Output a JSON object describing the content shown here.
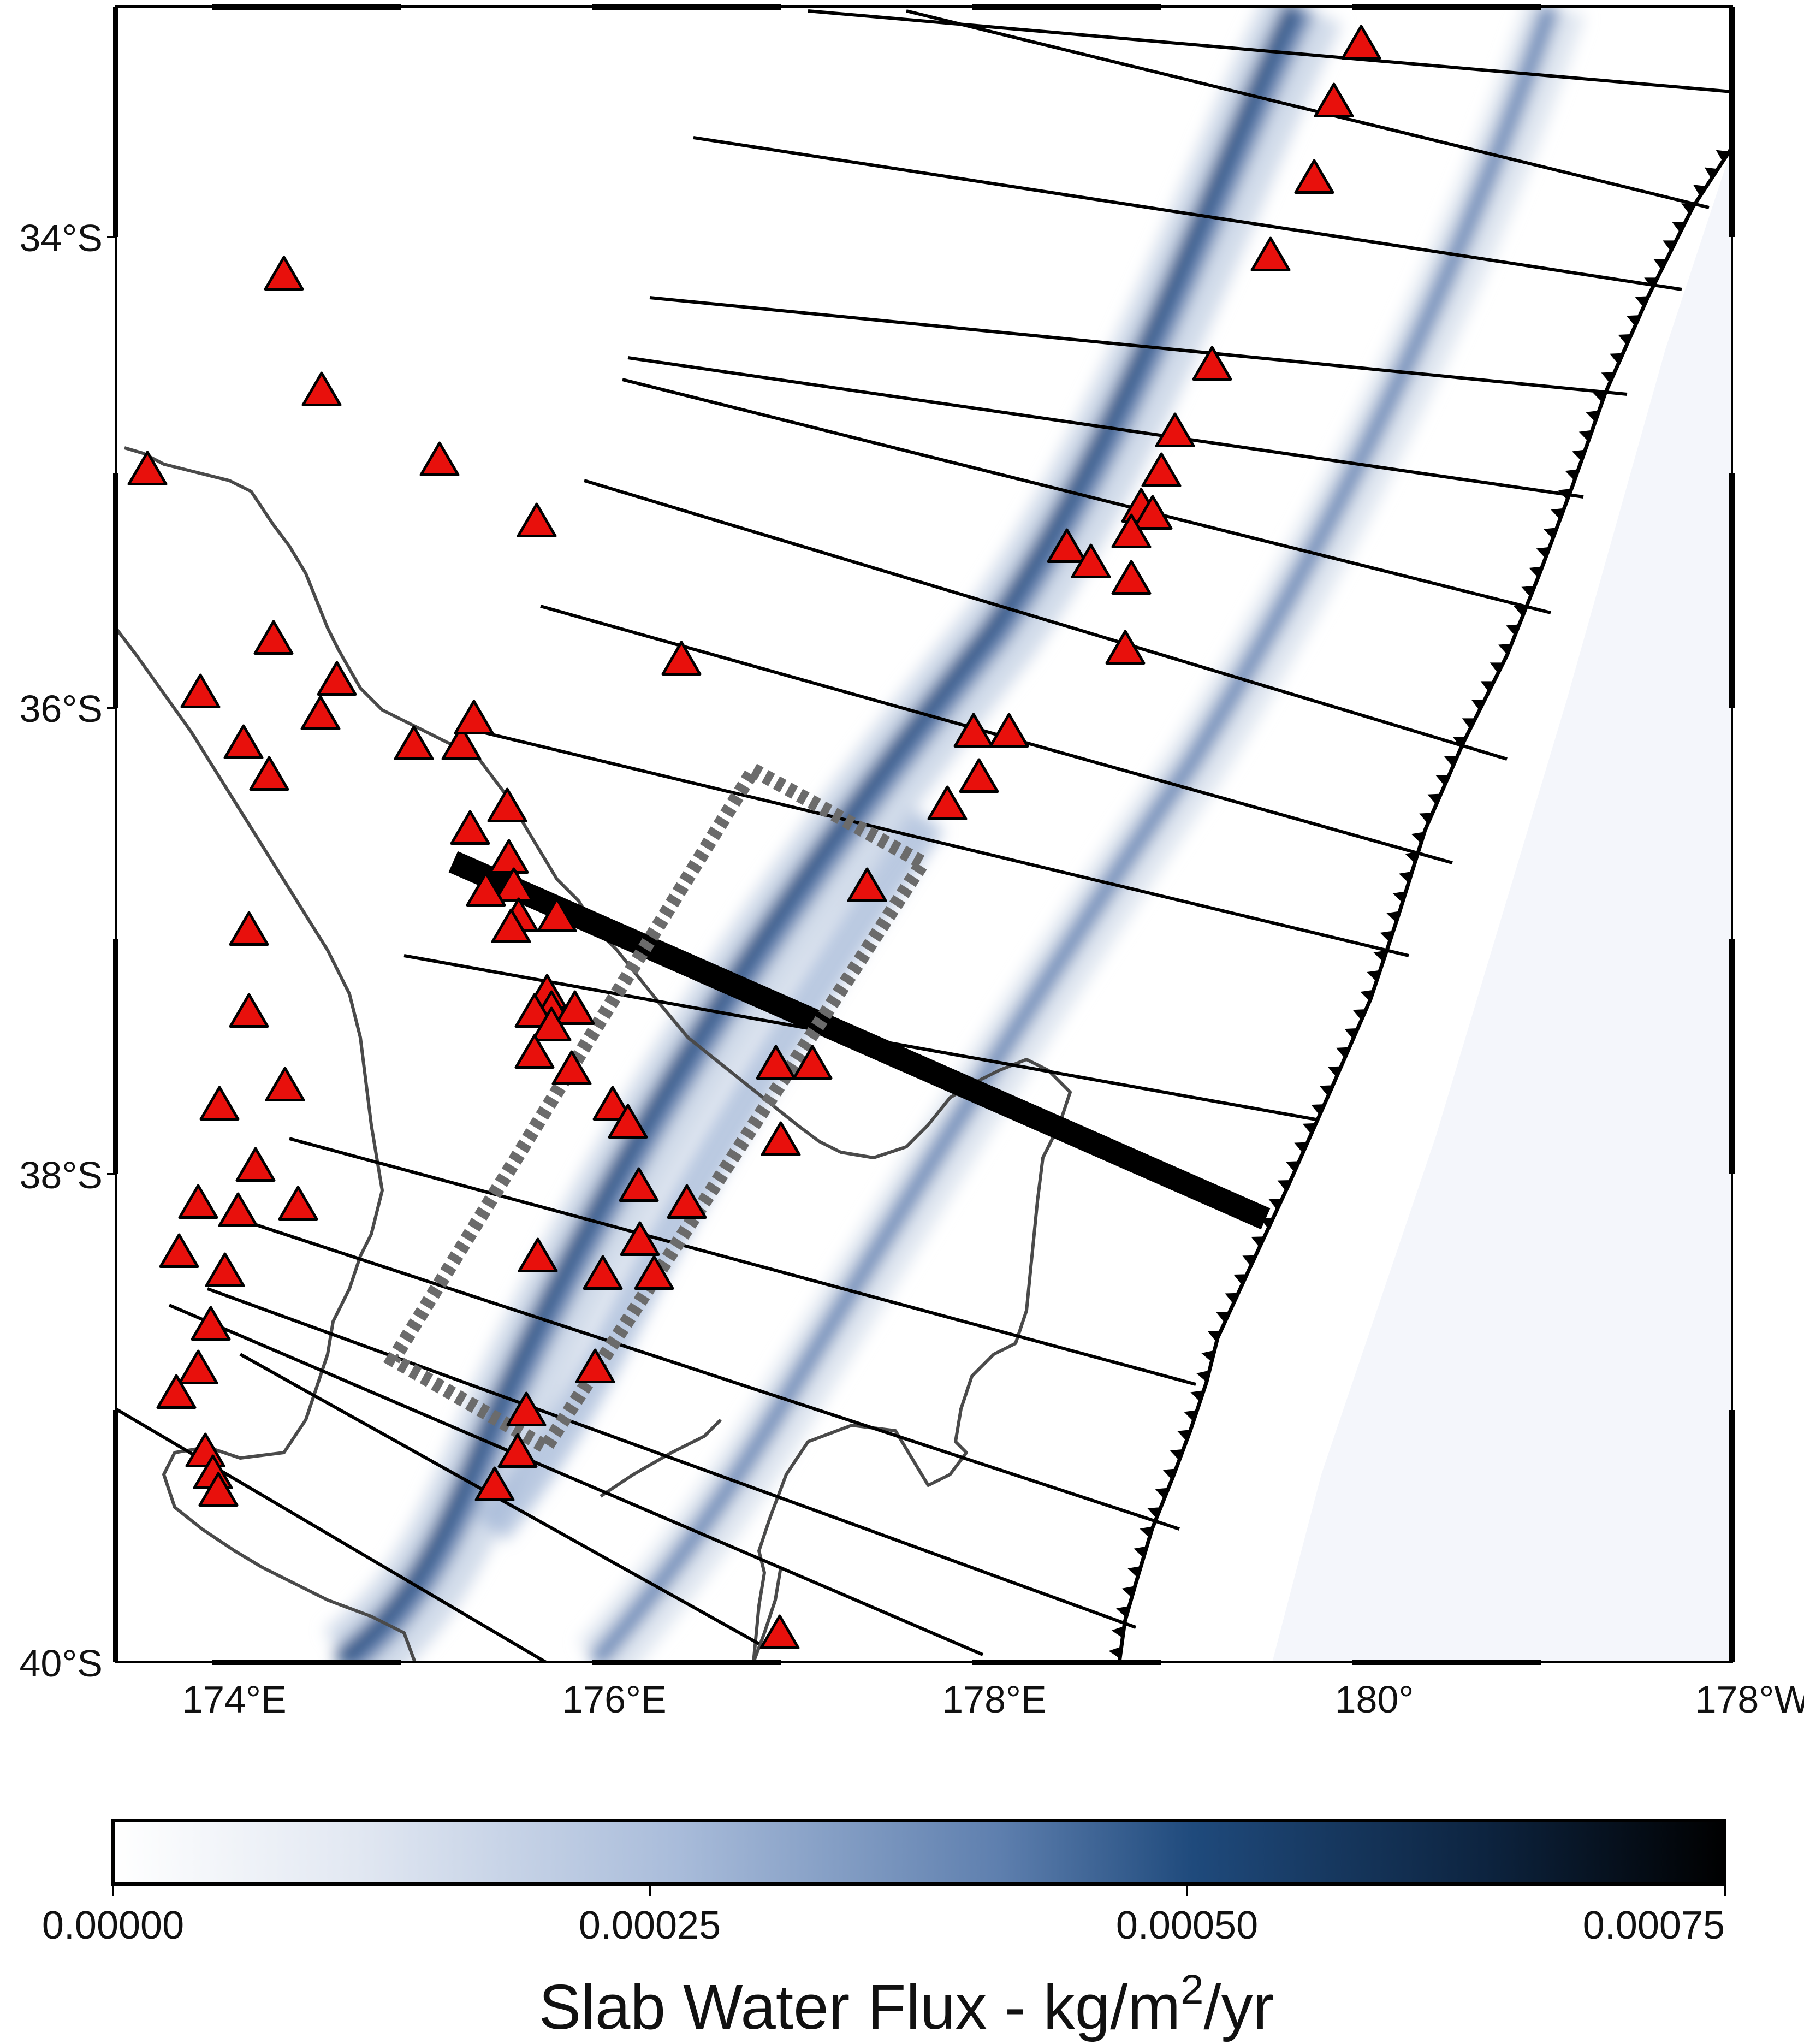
{
  "map": {
    "lon_range": [
      173.5,
      181.9
    ],
    "lat_range": [
      -40.0,
      -33.0
    ],
    "lat_ticks": [
      {
        "lat": -34,
        "label": "34°S"
      },
      {
        "lat": -36,
        "label": "36°S"
      },
      {
        "lat": -38,
        "label": "38°S"
      },
      {
        "lat": -40,
        "label": "40°S"
      }
    ],
    "lon_ticks": [
      {
        "lon": 174,
        "label": "174°E"
      },
      {
        "lon": 176,
        "label": "176°E"
      },
      {
        "lon": 178,
        "label": "178°E"
      },
      {
        "lon": 180,
        "label": "180°"
      },
      {
        "lon": 182,
        "label": "178°W"
      }
    ],
    "colors": {
      "volcano_fill": "#e8100c",
      "coastline": "#4a4a4a",
      "profile_lines": "#000000",
      "study_box": "#6e6e6e",
      "flux_low": "#f7f9fc",
      "flux_mid": "#7d98c4",
      "flux_high": "#1d3e6b",
      "flux_max": "#000000"
    },
    "legend_items": [
      "volcano-triangle",
      "trench-teeth",
      "profile-line",
      "study-box"
    ]
  },
  "colorbar": {
    "ticks": [
      "0.00000",
      "0.00025",
      "0.00050",
      "0.00075"
    ],
    "title": "Slab Water Flux - kg/m",
    "title_sup": "2",
    "title_end": "/yr"
  }
}
